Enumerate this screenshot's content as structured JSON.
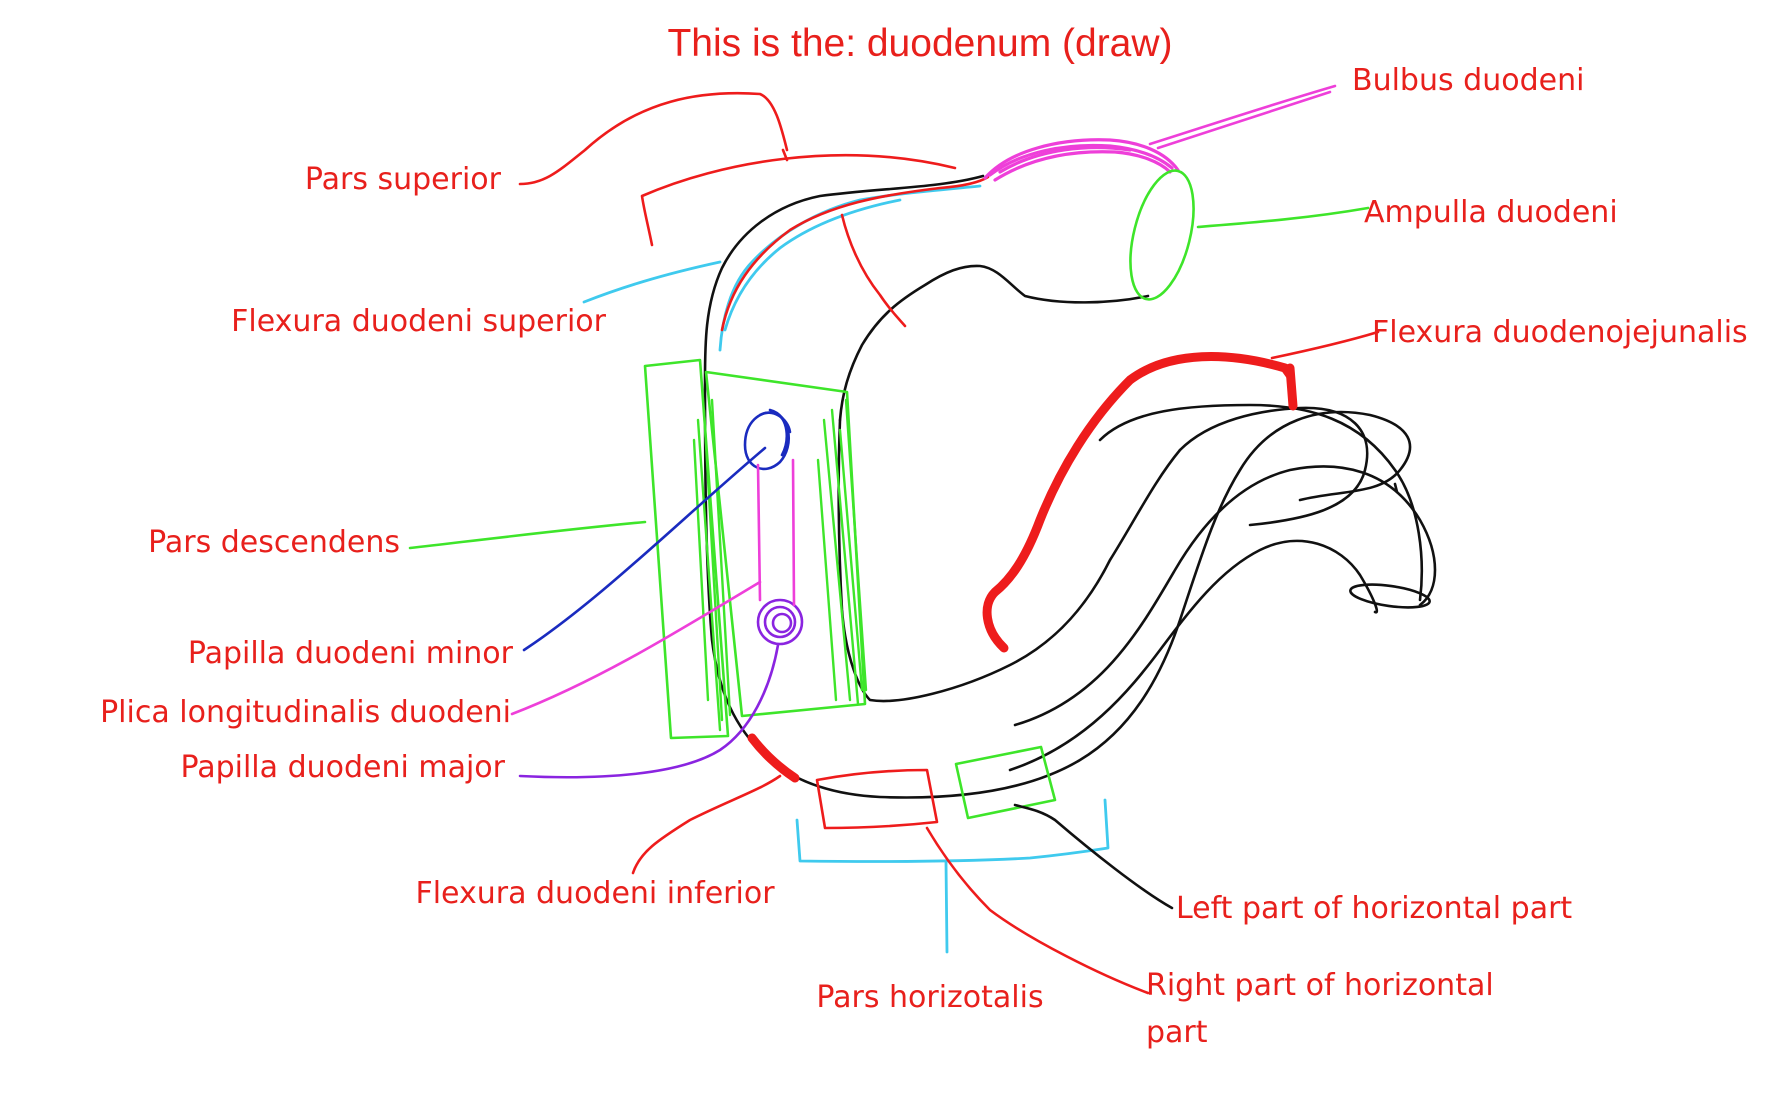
{
  "title": "This is the: duodenum (draw)",
  "labels": {
    "pars_superior": "Pars superior",
    "flexura_duodeni_superior": "Flexura duodeni superior",
    "pars_descendens": "Pars descendens",
    "papilla_duodeni_minor": "Papilla duodeni minor",
    "plica_longitudinalis_duodeni": "Plica longitudinalis duodeni",
    "papilla_duodeni_major": "Papilla duodeni major",
    "flexura_duodeni_inferior": "Flexura duodeni inferior",
    "pars_horizontalis": "Pars horizotalis",
    "bulbus_duodeni": "Bulbus duodeni",
    "ampulla_duodeni": "Ampulla duodeni",
    "flexura_duodenojejunalis": "Flexura duodenojejunalis",
    "left_part_horizontal": "Left part of horizontal part",
    "right_part_horizontal_line1": "Right part of horizontal",
    "right_part_horizontal_line2": "part"
  },
  "colors": {
    "label_text": "#e8201c",
    "outline": "#111111",
    "red_marker": "#ee1c1c",
    "green_marker": "#3ee52a",
    "cyan_marker": "#3fcaee",
    "magenta_marker": "#ee3fd9",
    "blue_marker": "#1a2bbf",
    "purple_marker": "#8a24e0"
  }
}
